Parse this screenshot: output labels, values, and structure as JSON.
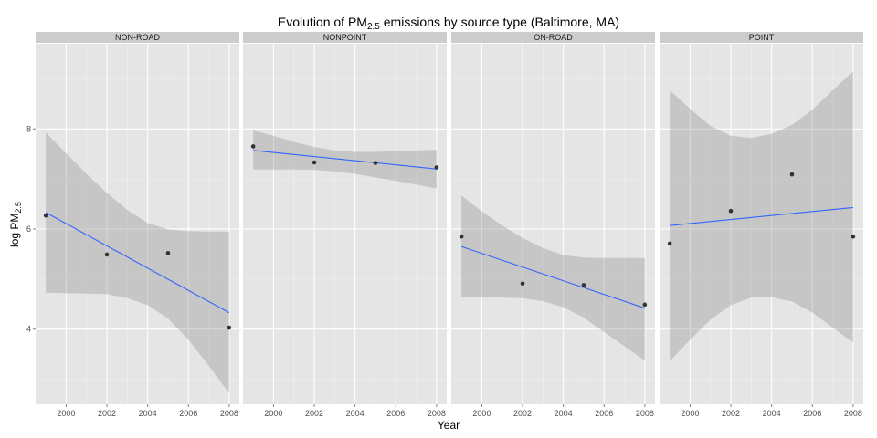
{
  "chart_data": {
    "type": "scatter",
    "title": "Evolution of PM",
    "title_sub": "2.5",
    "title_rest": " emissions by source type (Baltimore, MA)",
    "xlabel": "Year",
    "ylabel": "log PM",
    "ylabel_sub": "2.5",
    "xlim": [
      1998.5,
      2008.5
    ],
    "ylim": [
      2.5,
      9.7
    ],
    "x_ticks": [
      2000,
      2002,
      2004,
      2006,
      2008
    ],
    "x_tick_labels": [
      "2000",
      "2002",
      "2004",
      "2006",
      "2008"
    ],
    "y_ticks": [
      4,
      6,
      8
    ],
    "y_tick_labels": [
      "4",
      "6",
      "8"
    ],
    "grid": true,
    "colors": {
      "panel_bg": "#e5e5e5",
      "grid_major": "#ffffff",
      "grid_minor": "#f0f0f0",
      "strip_bg": "#cccccc",
      "ribbon": "#999999",
      "line": "#3366ff",
      "point": "#333333",
      "tick": "#7f7f7f"
    },
    "panels": [
      {
        "name": "NON-ROAD",
        "points": [
          {
            "x": 1999,
            "y": 6.27
          },
          {
            "x": 2002,
            "y": 5.49
          },
          {
            "x": 2005,
            "y": 5.52
          },
          {
            "x": 2008,
            "y": 4.03
          }
        ],
        "fit": {
          "x": [
            1999,
            2008
          ],
          "y": [
            6.33,
            4.33
          ]
        },
        "band": {
          "x": [
            1999,
            2000,
            2001,
            2002,
            2003,
            2004,
            2005,
            2006,
            2007,
            2008
          ],
          "upper": [
            7.93,
            7.51,
            7.1,
            6.72,
            6.38,
            6.12,
            5.99,
            5.96,
            5.95,
            5.95
          ],
          "lower": [
            4.73,
            4.72,
            4.71,
            4.7,
            4.62,
            4.48,
            4.21,
            3.79,
            3.27,
            2.72
          ]
        }
      },
      {
        "name": "NONPOINT",
        "points": [
          {
            "x": 1999,
            "y": 7.65
          },
          {
            "x": 2002,
            "y": 7.33
          },
          {
            "x": 2005,
            "y": 7.32
          },
          {
            "x": 2008,
            "y": 7.23
          }
        ],
        "fit": {
          "x": [
            1999,
            2008
          ],
          "y": [
            7.57,
            7.2
          ]
        },
        "band": {
          "x": [
            1999,
            2000,
            2001,
            2002,
            2003,
            2004,
            2005,
            2006,
            2007,
            2008
          ],
          "upper": [
            7.97,
            7.86,
            7.74,
            7.64,
            7.57,
            7.54,
            7.54,
            7.56,
            7.57,
            7.58
          ],
          "lower": [
            7.19,
            7.19,
            7.19,
            7.18,
            7.15,
            7.1,
            7.03,
            6.96,
            6.89,
            6.81
          ]
        }
      },
      {
        "name": "ON-ROAD",
        "points": [
          {
            "x": 1999,
            "y": 5.85
          },
          {
            "x": 2002,
            "y": 4.91
          },
          {
            "x": 2005,
            "y": 4.88
          },
          {
            "x": 2008,
            "y": 4.49
          }
        ],
        "fit": {
          "x": [
            1999,
            2008
          ],
          "y": [
            5.65,
            4.42
          ]
        },
        "band": {
          "x": [
            1999,
            2000,
            2001,
            2002,
            2003,
            2004,
            2005,
            2006,
            2007,
            2008
          ],
          "upper": [
            6.67,
            6.35,
            6.07,
            5.82,
            5.62,
            5.48,
            5.43,
            5.42,
            5.42,
            5.42
          ],
          "lower": [
            4.63,
            4.63,
            4.63,
            4.62,
            4.56,
            4.44,
            4.23,
            3.94,
            3.66,
            3.37
          ]
        }
      },
      {
        "name": "POINT",
        "points": [
          {
            "x": 1999,
            "y": 5.71
          },
          {
            "x": 2002,
            "y": 6.36
          },
          {
            "x": 2005,
            "y": 7.09
          },
          {
            "x": 2008,
            "y": 5.85
          }
        ],
        "fit": {
          "x": [
            1999,
            2008
          ],
          "y": [
            6.07,
            6.43
          ]
        },
        "band": {
          "x": [
            1999,
            2000,
            2001,
            2002,
            2003,
            2004,
            2005,
            2006,
            2007,
            2008
          ],
          "upper": [
            8.77,
            8.4,
            8.06,
            7.86,
            7.82,
            7.9,
            8.08,
            8.38,
            8.77,
            9.15
          ],
          "lower": [
            3.36,
            3.79,
            4.19,
            4.48,
            4.63,
            4.64,
            4.55,
            4.33,
            4.03,
            3.73
          ]
        }
      }
    ]
  }
}
